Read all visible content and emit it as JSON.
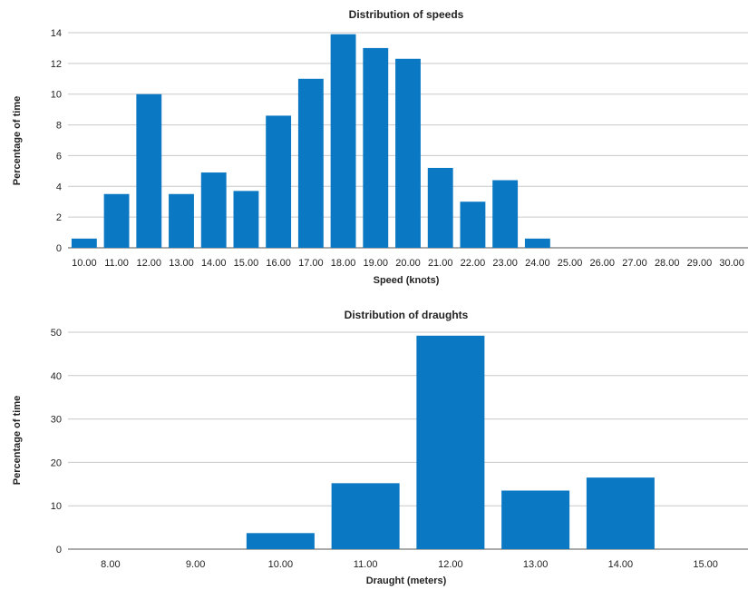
{
  "colors": {
    "bar": "#0a78c2",
    "grid": "#c9c9c9",
    "axis": "#555555",
    "text": "#222222"
  },
  "chart_data": [
    {
      "type": "bar",
      "title": "Distribution of speeds",
      "xlabel": "Speed (knots)",
      "ylabel": "Percentage of time",
      "categories": [
        "10.00",
        "11.00",
        "12.00",
        "13.00",
        "14.00",
        "15.00",
        "16.00",
        "17.00",
        "18.00",
        "19.00",
        "20.00",
        "21.00",
        "22.00",
        "23.00",
        "24.00",
        "25.00",
        "26.00",
        "27.00",
        "28.00",
        "29.00",
        "30.00"
      ],
      "values": [
        0.6,
        3.5,
        10.0,
        3.5,
        4.9,
        3.7,
        8.6,
        11.0,
        13.9,
        13.0,
        12.3,
        5.2,
        3.0,
        4.4,
        0.6,
        0,
        0,
        0,
        0,
        0,
        0
      ],
      "ylim": [
        0,
        14
      ],
      "yticks": [
        0,
        2,
        4,
        6,
        8,
        10,
        12,
        14
      ],
      "grid": true
    },
    {
      "type": "bar",
      "title": "Distribution of draughts",
      "xlabel": "Draught (meters)",
      "ylabel": "Percentage of time",
      "categories": [
        "8.00",
        "9.00",
        "10.00",
        "11.00",
        "12.00",
        "13.00",
        "14.00",
        "15.00"
      ],
      "values": [
        0,
        0,
        3.7,
        15.2,
        49.2,
        13.5,
        16.5,
        0
      ],
      "ylim": [
        0,
        50
      ],
      "yticks": [
        0,
        10,
        20,
        30,
        40,
        50
      ],
      "grid": true
    }
  ]
}
